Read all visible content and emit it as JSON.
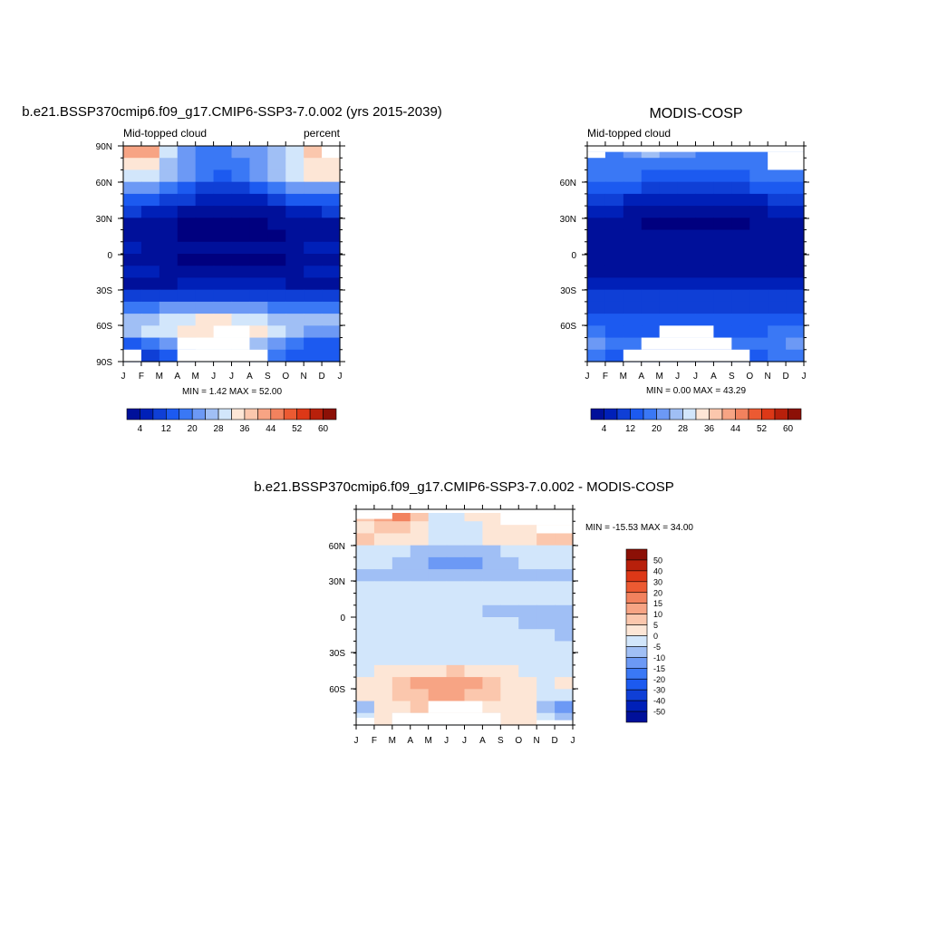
{
  "palettes": {
    "abs": [
      "#00007f",
      "#00109a",
      "#0020b8",
      "#0f3fd6",
      "#1c5af0",
      "#3a78f5",
      "#6c99f5",
      "#a0bff5",
      "#d2e6fb",
      "#fde6d6",
      "#fbc7ad",
      "#f7a484",
      "#f2825e",
      "#ec5a32",
      "#dd3817",
      "#b8200b",
      "#8c1006"
    ],
    "diff": [
      "#00007f",
      "#00109a",
      "#0020b8",
      "#0f3fd6",
      "#1c5af0",
      "#3a78f5",
      "#6c99f5",
      "#a0bff5",
      "#d2e6fb",
      "#fde6d6",
      "#fbc7ad",
      "#f7a484",
      "#f2825e",
      "#ec5a32",
      "#dd3817",
      "#b8200b",
      "#8c1006"
    ]
  },
  "chart_data": [
    {
      "type": "heatmap",
      "title": "b.e21.BSSP370cmip6.f09_g17.CMIP6-SSP3-7.0.002 (yrs 2015-2039)",
      "left_label": "Mid-topped cloud",
      "right_label": "percent",
      "stats": "MIN =   1.42 MAX =  52.00",
      "x_ticks": [
        "J",
        "F",
        "M",
        "A",
        "M",
        "J",
        "J",
        "A",
        "S",
        "O",
        "N",
        "D",
        "J"
      ],
      "y_ticks": [
        "90N",
        "60N",
        "30N",
        "0",
        "30S",
        "60S",
        "90S"
      ],
      "colorbar_labels": [
        "4",
        "12",
        "20",
        "28",
        "36",
        "44",
        "52",
        "60"
      ],
      "min": 1.42,
      "max": 52.0,
      "rows_lat": [
        "85N",
        "75N",
        "65N",
        "55N",
        "45N",
        "35N",
        "25N",
        "15N",
        "5N",
        "5S",
        "15S",
        "25S",
        "35S",
        "45S",
        "55S",
        "65S",
        "75S",
        "85S"
      ],
      "values": [
        [
          42,
          48,
          40,
          26,
          22,
          20,
          24,
          26,
          28,
          30,
          38,
          42,
          44
        ],
        [
          36,
          40,
          34,
          28,
          24,
          20,
          22,
          24,
          28,
          32,
          36,
          36,
          36
        ],
        [
          34,
          36,
          32,
          26,
          22,
          18,
          20,
          22,
          26,
          30,
          36,
          40,
          36
        ],
        [
          26,
          26,
          24,
          20,
          16,
          14,
          14,
          16,
          18,
          22,
          26,
          28,
          26
        ],
        [
          18,
          18,
          16,
          14,
          12,
          10,
          10,
          10,
          12,
          14,
          18,
          18,
          18
        ],
        [
          12,
          12,
          10,
          8,
          6,
          5,
          5,
          5,
          6,
          8,
          10,
          12,
          12
        ],
        [
          6,
          6,
          5,
          4,
          3,
          3,
          3,
          3,
          4,
          5,
          6,
          6,
          6
        ],
        [
          5,
          5,
          4,
          4,
          3,
          3,
          3,
          3,
          3,
          4,
          5,
          5,
          5
        ],
        [
          8,
          8,
          7,
          6,
          6,
          5,
          5,
          5,
          6,
          7,
          8,
          8,
          8
        ],
        [
          6,
          5,
          5,
          4,
          3,
          3,
          2,
          3,
          3,
          4,
          5,
          5,
          6
        ],
        [
          9,
          8,
          8,
          7,
          6,
          6,
          6,
          6,
          7,
          7,
          8,
          8,
          9
        ],
        [
          5,
          6,
          7,
          8,
          9,
          10,
          10,
          10,
          9,
          8,
          7,
          6,
          5
        ],
        [
          12,
          13,
          14,
          14,
          14,
          14,
          14,
          14,
          13,
          13,
          12,
          12,
          12
        ],
        [
          20,
          22,
          24,
          26,
          26,
          26,
          26,
          26,
          24,
          22,
          20,
          20,
          20
        ],
        [
          28,
          30,
          32,
          34,
          36,
          36,
          36,
          34,
          32,
          30,
          28,
          28,
          28
        ],
        [
          26,
          30,
          34,
          36,
          38,
          40,
          40,
          38,
          34,
          30,
          28,
          26,
          26
        ],
        [
          16,
          20,
          24,
          28,
          32,
          34,
          34,
          32,
          28,
          24,
          20,
          16,
          16
        ],
        [
          18,
          14,
          14,
          20,
          26,
          30,
          30,
          28,
          24,
          20,
          16,
          16,
          18
        ]
      ],
      "missing": [
        {
          "lat": "85N",
          "months": [
            "J",
            "N",
            "D",
            "J"
          ]
        },
        {
          "lat": "85S",
          "months": [
            "F",
            "M"
          ]
        },
        {
          "lat": "85S",
          "months": [
            "A",
            "M",
            "J",
            "J",
            "A",
            "S"
          ]
        },
        {
          "lat": "75S",
          "months": [
            "A",
            "M",
            "J",
            "J",
            "A"
          ]
        }
      ]
    },
    {
      "type": "heatmap",
      "title": "MODIS-COSP",
      "left_label": "Mid-topped cloud",
      "stats": "MIN =   0.00 MAX =  43.29",
      "x_ticks": [
        "J",
        "F",
        "M",
        "A",
        "M",
        "J",
        "J",
        "A",
        "S",
        "O",
        "N",
        "D",
        "J"
      ],
      "y_ticks": [
        "60N",
        "30N",
        "0",
        "30S",
        "60S"
      ],
      "colorbar_labels": [
        "4",
        "12",
        "20",
        "28",
        "36",
        "44",
        "52",
        "60"
      ],
      "min": 0.0,
      "max": 43.29,
      "rows_lat": [
        "85N",
        "75N",
        "65N",
        "55N",
        "45N",
        "35N",
        "25N",
        "15N",
        "5N",
        "5S",
        "15S",
        "25S",
        "35S",
        "45S",
        "55S",
        "65S",
        "75S",
        "85S"
      ],
      "values": [
        [
          20,
          22,
          24,
          30,
          28,
          26,
          24,
          22,
          22,
          24,
          20,
          20,
          20
        ],
        [
          20,
          22,
          22,
          24,
          22,
          20,
          20,
          20,
          22,
          22,
          22,
          22,
          22
        ],
        [
          20,
          20,
          20,
          20,
          18,
          18,
          18,
          18,
          18,
          20,
          20,
          20,
          20
        ],
        [
          16,
          16,
          16,
          16,
          14,
          14,
          14,
          14,
          14,
          16,
          16,
          16,
          16
        ],
        [
          12,
          12,
          12,
          10,
          10,
          8,
          8,
          8,
          10,
          10,
          12,
          12,
          12
        ],
        [
          8,
          8,
          8,
          6,
          5,
          4,
          4,
          4,
          5,
          6,
          8,
          8,
          8
        ],
        [
          5,
          5,
          5,
          4,
          3,
          2,
          2,
          3,
          3,
          4,
          5,
          5,
          5
        ],
        [
          5,
          5,
          4,
          4,
          4,
          4,
          4,
          4,
          4,
          4,
          5,
          5,
          5
        ],
        [
          6,
          6,
          6,
          6,
          5,
          5,
          5,
          5,
          6,
          6,
          6,
          6,
          6
        ],
        [
          4,
          4,
          4,
          4,
          4,
          4,
          4,
          4,
          4,
          4,
          4,
          4,
          4
        ],
        [
          7,
          7,
          7,
          7,
          7,
          7,
          7,
          7,
          7,
          7,
          7,
          7,
          7
        ],
        [
          9,
          9,
          9,
          10,
          10,
          10,
          10,
          10,
          10,
          9,
          9,
          9,
          9
        ],
        [
          12,
          12,
          12,
          13,
          13,
          13,
          13,
          13,
          13,
          12,
          12,
          12,
          12
        ],
        [
          14,
          14,
          14,
          15,
          15,
          15,
          15,
          15,
          15,
          14,
          14,
          14,
          14
        ],
        [
          16,
          16,
          16,
          17,
          17,
          17,
          17,
          17,
          17,
          16,
          16,
          16,
          16
        ],
        [
          20,
          20,
          18,
          18,
          18,
          18,
          18,
          18,
          18,
          18,
          20,
          20,
          20
        ],
        [
          24,
          24,
          22,
          22,
          22,
          22,
          22,
          22,
          22,
          22,
          22,
          24,
          24
        ],
        [
          20,
          20,
          18,
          18,
          18,
          18,
          18,
          18,
          18,
          18,
          20,
          20,
          20
        ]
      ]
    },
    {
      "type": "heatmap",
      "title": "b.e21.BSSP370cmip6.f09_g17.CMIP6-SSP3-7.0.002 - MODIS-COSP",
      "stats": "MIN = -15.53 MAX =  34.00",
      "x_ticks": [
        "J",
        "F",
        "M",
        "A",
        "M",
        "J",
        "J",
        "A",
        "S",
        "O",
        "N",
        "D",
        "J"
      ],
      "y_ticks": [
        "60N",
        "30N",
        "0",
        "30S",
        "60S"
      ],
      "colorbar_labels": [
        "50",
        "40",
        "30",
        "20",
        "15",
        "10",
        "5",
        "0",
        "-5",
        "-10",
        "-15",
        "-20",
        "-30",
        "-40",
        "-50"
      ],
      "min": -15.53,
      "max": 34.0,
      "rows_lat": [
        "85N",
        "75N",
        "65N",
        "55N",
        "45N",
        "35N",
        "25N",
        "15N",
        "5N",
        "5S",
        "15S",
        "25S",
        "35S",
        "45S",
        "55S",
        "65S",
        "75S",
        "85S"
      ],
      "values": [
        [
          10,
          12,
          22,
          20,
          6,
          2,
          4,
          6,
          8,
          8,
          4,
          10,
          10
        ],
        [
          8,
          10,
          14,
          8,
          4,
          2,
          2,
          4,
          6,
          10,
          6,
          8,
          8
        ],
        [
          10,
          10,
          8,
          6,
          4,
          2,
          2,
          4,
          6,
          8,
          10,
          10,
          10
        ],
        [
          4,
          4,
          2,
          -2,
          -4,
          -4,
          -4,
          -4,
          -2,
          2,
          4,
          4,
          4
        ],
        [
          2,
          2,
          -2,
          -4,
          -6,
          -6,
          -6,
          -6,
          -4,
          -2,
          2,
          2,
          2
        ],
        [
          -2,
          -2,
          -2,
          -4,
          -4,
          -2,
          -2,
          -2,
          -2,
          -2,
          -2,
          -2,
          -2
        ],
        [
          2,
          2,
          2,
          2,
          2,
          2,
          2,
          2,
          2,
          2,
          2,
          2,
          2
        ],
        [
          2,
          2,
          2,
          2,
          2,
          2,
          2,
          2,
          2,
          2,
          2,
          2,
          2
        ],
        [
          -2,
          2,
          2,
          2,
          2,
          2,
          2,
          -2,
          -2,
          -2,
          -2,
          -2,
          -2
        ],
        [
          2,
          2,
          2,
          2,
          2,
          2,
          2,
          2,
          2,
          -2,
          -2,
          -2,
          -2
        ],
        [
          2,
          2,
          2,
          2,
          2,
          2,
          2,
          2,
          2,
          2,
          2,
          -2,
          -2
        ],
        [
          -2,
          2,
          2,
          2,
          2,
          2,
          2,
          2,
          2,
          2,
          2,
          2,
          2
        ],
        [
          2,
          2,
          2,
          4,
          4,
          4,
          4,
          4,
          2,
          2,
          2,
          2,
          2
        ],
        [
          2,
          4,
          6,
          8,
          8,
          10,
          10,
          8,
          6,
          4,
          2,
          2,
          2
        ],
        [
          6,
          8,
          10,
          14,
          18,
          20,
          18,
          12,
          8,
          6,
          4,
          4,
          6
        ],
        [
          4,
          6,
          10,
          12,
          16,
          18,
          16,
          12,
          8,
          6,
          4,
          4,
          4
        ],
        [
          -6,
          4,
          8,
          10,
          10,
          10,
          10,
          10,
          8,
          6,
          4,
          -6,
          -6
        ],
        [
          -4,
          6,
          4,
          4,
          4,
          4,
          4,
          4,
          4,
          10,
          6,
          -4,
          -4
        ]
      ]
    }
  ]
}
